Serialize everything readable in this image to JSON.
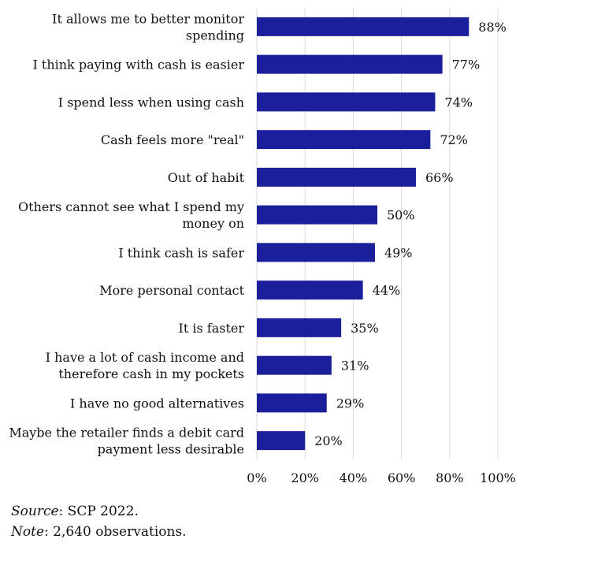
{
  "chart_data": {
    "type": "bar",
    "orientation": "horizontal",
    "title": "",
    "xlabel": "",
    "ylabel": "",
    "categories": [
      [
        "It allows me to better monitor",
        "spending"
      ],
      [
        "I think paying with cash is easier"
      ],
      [
        "I spend less when using cash"
      ],
      [
        "Cash feels more \"real\""
      ],
      [
        "Out of habit"
      ],
      [
        "Others cannot see what I spend my",
        "money on"
      ],
      [
        "I think cash is safer"
      ],
      [
        "More personal contact"
      ],
      [
        "It is faster"
      ],
      [
        "I have a lot of cash income and",
        "therefore cash in my pockets"
      ],
      [
        "I have no good alternatives"
      ],
      [
        "Maybe the retailer finds a debit card",
        "payment less desirable"
      ]
    ],
    "values": [
      88,
      77,
      74,
      72,
      66,
      50,
      49,
      44,
      35,
      31,
      29,
      20
    ],
    "value_labels": [
      "88%",
      "77%",
      "74%",
      "72%",
      "66%",
      "50%",
      "49%",
      "44%",
      "35%",
      "31%",
      "29%",
      "20%"
    ],
    "xlim": [
      0,
      100
    ],
    "xticks": [
      0,
      20,
      40,
      60,
      80,
      100
    ],
    "xtick_labels": [
      "0%",
      "20%",
      "40%",
      "60%",
      "80%",
      "100%"
    ],
    "grid": "vertical",
    "legend": "none",
    "bar_color": "#1b1f9c",
    "grid_color": "#d9d9d9"
  },
  "footnotes": {
    "source_label": "Source",
    "source_text": ": SCP 2022.",
    "note_label": "Note",
    "note_text": ": 2,640 observations."
  }
}
